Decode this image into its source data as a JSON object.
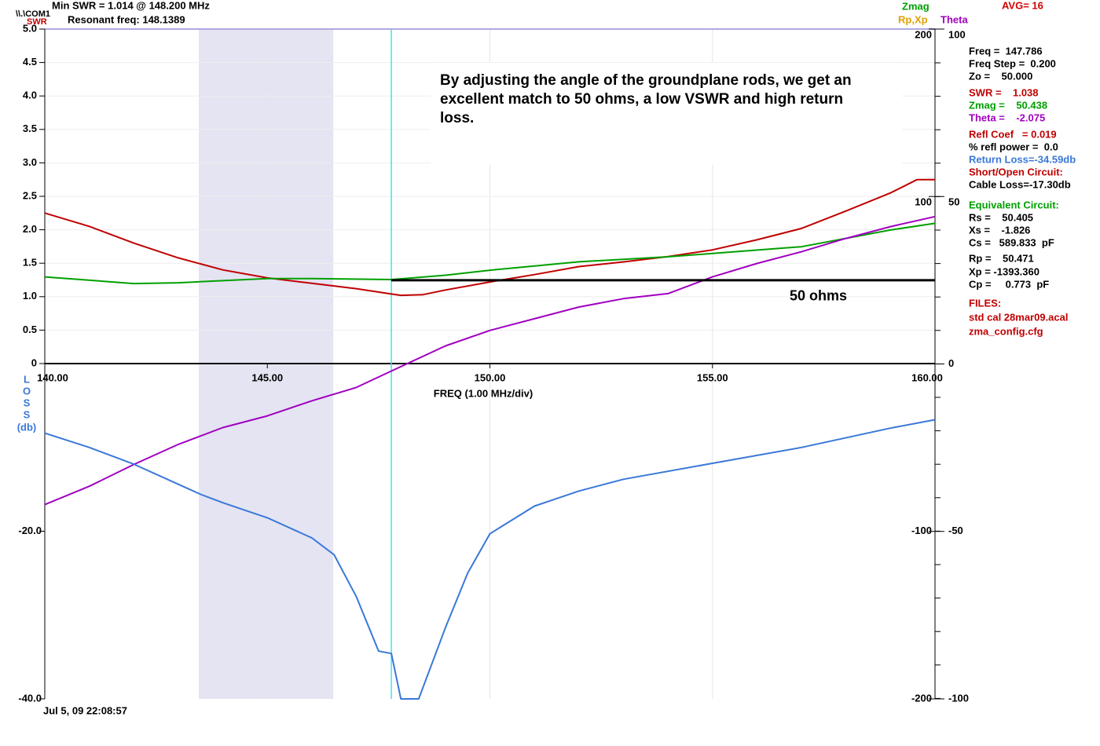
{
  "chart_data": {
    "type": "line",
    "header": [
      {
        "text": "\\\\.\\COM1",
        "color": "#000000"
      },
      {
        "text": "SWR",
        "color": "#c00000"
      },
      {
        "text": "Min SWR =  1.014 @  148.200 MHz",
        "color": "#000000"
      },
      {
        "text": "Resonant freq:  148.1389",
        "color": "#000000"
      }
    ],
    "legend_labels": [
      {
        "text": "Zmag",
        "color": "#00a000"
      },
      {
        "text": "Rp,Xp",
        "color": "#e0a000"
      },
      {
        "text": "Theta",
        "color": "#a000c0"
      },
      {
        "text": "AVG=  16",
        "color": "#d00000"
      }
    ],
    "xlabel": "FREQ (1.00 MHz/div)",
    "loss_label": [
      "L",
      "O",
      "S",
      "S",
      "(db)"
    ],
    "timestamp": "Jul 5, 09  22:08:57",
    "annotation": [
      "By adjusting the angle of the groundplane rods, we get an",
      "excellent match to 50 ohms, a low VSWR and high return",
      "loss."
    ],
    "xlim": [
      140,
      160
    ],
    "xticks": [
      {
        "value": 140,
        "label": "140.00"
      },
      {
        "value": 145,
        "label": "145.00"
      },
      {
        "value": 150,
        "label": "150.00"
      },
      {
        "value": 155,
        "label": "155.00"
      },
      {
        "value": 160,
        "label": "160.00"
      }
    ],
    "ylim": [
      0,
      5
    ],
    "yticks": [
      0,
      0.5,
      {
        "value": 1,
        "label": "1.0"
      },
      1.5,
      {
        "value": 2,
        "label": "2.0"
      },
      2.5,
      {
        "value": 3,
        "label": "3.0"
      },
      3.5,
      {
        "value": 4,
        "label": "4.0"
      },
      4.5,
      {
        "value": 5,
        "label": "5.0"
      }
    ],
    "y2lim": [
      -40,
      0
    ],
    "y2ticks": [
      {
        "value": -20,
        "label": "-20.0"
      },
      {
        "value": -40,
        "label": "-40.0"
      }
    ],
    "y3lim": [
      -200,
      200
    ],
    "y3ticks": [
      200,
      100,
      -100,
      -200
    ],
    "y4lim": [
      -100,
      100
    ],
    "y4ticks": [
      100,
      50,
      0,
      -50,
      -100
    ],
    "grid": true,
    "band": [
      143.46,
      146.48
    ],
    "band_color": "#e4e4f2",
    "cursor_freq": 147.786,
    "cursor_color": "#40e0f0",
    "ref_line": {
      "value": 50,
      "x": [
        147.786,
        160
      ],
      "label": "50 ohms",
      "color": "#000000"
    },
    "series": [
      {
        "name": "SWR",
        "color": "#c00000",
        "axis": "y",
        "x": [
          140,
          141,
          142,
          143,
          144,
          145,
          146,
          147,
          147.786,
          148,
          148.5,
          149,
          150,
          151,
          152,
          153,
          154,
          155,
          156,
          157,
          158,
          159,
          159.6,
          160
        ],
        "values": [
          2.25,
          2.05,
          1.8,
          1.58,
          1.4,
          1.28,
          1.2,
          1.12,
          1.04,
          1.02,
          1.03,
          1.1,
          1.22,
          1.33,
          1.45,
          1.52,
          1.6,
          1.7,
          1.85,
          2.02,
          2.28,
          2.55,
          2.75,
          2.75
        ]
      },
      {
        "name": "Zmag",
        "color": "#00a000",
        "axis": "y3",
        "x": [
          140,
          142,
          143,
          145,
          146,
          147.786,
          149,
          150,
          152,
          154,
          155,
          157,
          159,
          160
        ],
        "values": [
          52,
          48,
          48.5,
          51,
          51,
          50.4,
          53,
          56,
          61,
          64,
          66,
          70,
          80,
          84
        ]
      },
      {
        "name": "Theta",
        "color": "#a000c0",
        "axis": "y4",
        "x": [
          140,
          141,
          142,
          143,
          144,
          145,
          146,
          147,
          147.786,
          149,
          150,
          151,
          152,
          153,
          154,
          155,
          156,
          157,
          158,
          159,
          160
        ],
        "values": [
          -42,
          -36.5,
          -30,
          -24,
          -19,
          -15.5,
          -11,
          -7,
          -2.1,
          5.4,
          10,
          13.5,
          17,
          19.5,
          21,
          26,
          30,
          33.5,
          37.5,
          41,
          44
        ]
      },
      {
        "name": "Return Loss",
        "color": "#3a78d8",
        "axis": "y2",
        "x": [
          140,
          141,
          142,
          143,
          143.5,
          144,
          145,
          146,
          146.5,
          147,
          147.5,
          147.786,
          148,
          148.4,
          149,
          149.5,
          150,
          151,
          152,
          153,
          155,
          157,
          159,
          160
        ],
        "values": [
          -8.3,
          -10,
          -12,
          -14.4,
          -15.6,
          -16.6,
          -18.4,
          -20.8,
          -22.8,
          -27.8,
          -34.3,
          -34.59,
          -40,
          -40,
          -31.5,
          -25,
          -20.3,
          -17,
          -15.2,
          -13.8,
          -11.9,
          -10,
          -7.7,
          -6.7
        ]
      }
    ],
    "readouts": [
      {
        "text": "Freq =  147.786",
        "color": "#000000"
      },
      {
        "text": "Freq Step =  0.200",
        "color": "#000000"
      },
      {
        "text": "Zo =    50.000",
        "color": "#000000"
      },
      {
        "text": "SWR =    1.038",
        "color": "#c00000"
      },
      {
        "text": "Zmag =    50.438",
        "color": "#00a000"
      },
      {
        "text": "Theta =    -2.075",
        "color": "#a000c0"
      },
      {
        "text": "Refl Coef   = 0.019",
        "color": "#c00000"
      },
      {
        "text": "% refl power =  0.0",
        "color": "#000000"
      },
      {
        "text": "Return Loss=-34.59db",
        "color": "#3a78d8"
      },
      {
        "text": "Short/Open Circuit:",
        "color": "#c00000"
      },
      {
        "text": "Cable Loss=-17.30db",
        "color": "#000000"
      },
      {
        "text": "Equivalent Circuit:",
        "color": "#00a000"
      },
      {
        "text": "Rs =    50.405",
        "color": "#000000"
      },
      {
        "text": "Xs =    -1.826",
        "color": "#000000"
      },
      {
        "text": "Cs =   589.833  pF",
        "color": "#000000"
      },
      {
        "text": "Rp =    50.471",
        "color": "#000000"
      },
      {
        "text": "Xp = -1393.360",
        "color": "#000000"
      },
      {
        "text": "Cp =     0.773  pF",
        "color": "#000000"
      },
      {
        "text": "FILES:",
        "color": "#c00000"
      },
      {
        "text": "std cal 28mar09.acal",
        "color": "#c00000"
      },
      {
        "text": "zma_config.cfg",
        "color": "#c00000"
      }
    ]
  }
}
